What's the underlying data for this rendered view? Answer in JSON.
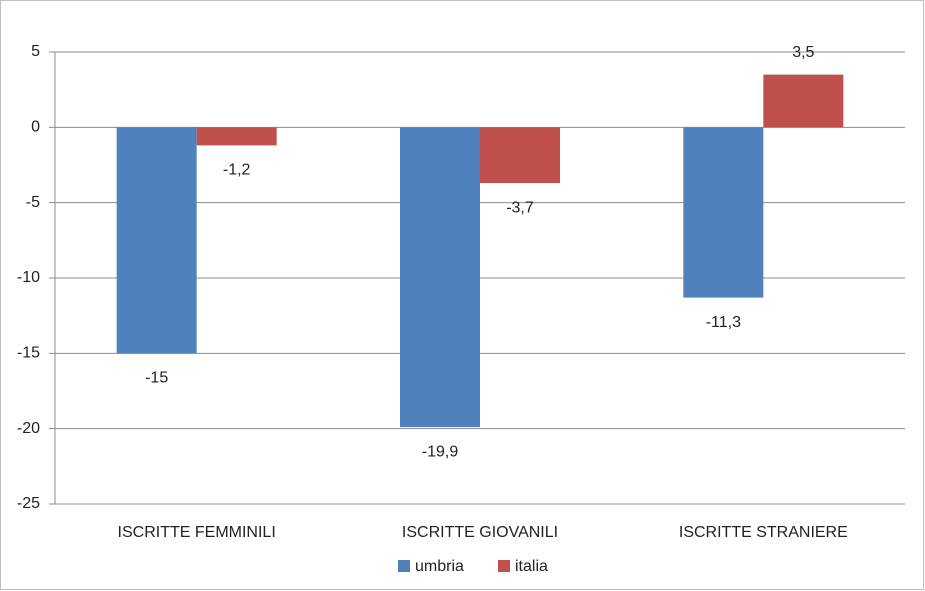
{
  "chart_data": {
    "type": "bar",
    "categories": [
      "ISCRITTE FEMMINILI",
      "ISCRITTE GIOVANILI",
      "ISCRITTE STRANIERE"
    ],
    "series": [
      {
        "name": "umbria",
        "color": "#4f81bd",
        "values": [
          -15,
          -19.9,
          -11.3
        ],
        "value_labels": [
          "-15",
          "-19,9",
          "-11,3"
        ]
      },
      {
        "name": "italia",
        "color": "#c0504d",
        "values": [
          -1.2,
          -3.7,
          3.5
        ],
        "value_labels": [
          "-1,2",
          "-3,7",
          "3,5"
        ]
      }
    ],
    "ylim": [
      -25,
      5
    ],
    "yticks": [
      5,
      0,
      -5,
      -10,
      -15,
      -20,
      -25
    ],
    "grid": true,
    "legend": "bottom"
  }
}
